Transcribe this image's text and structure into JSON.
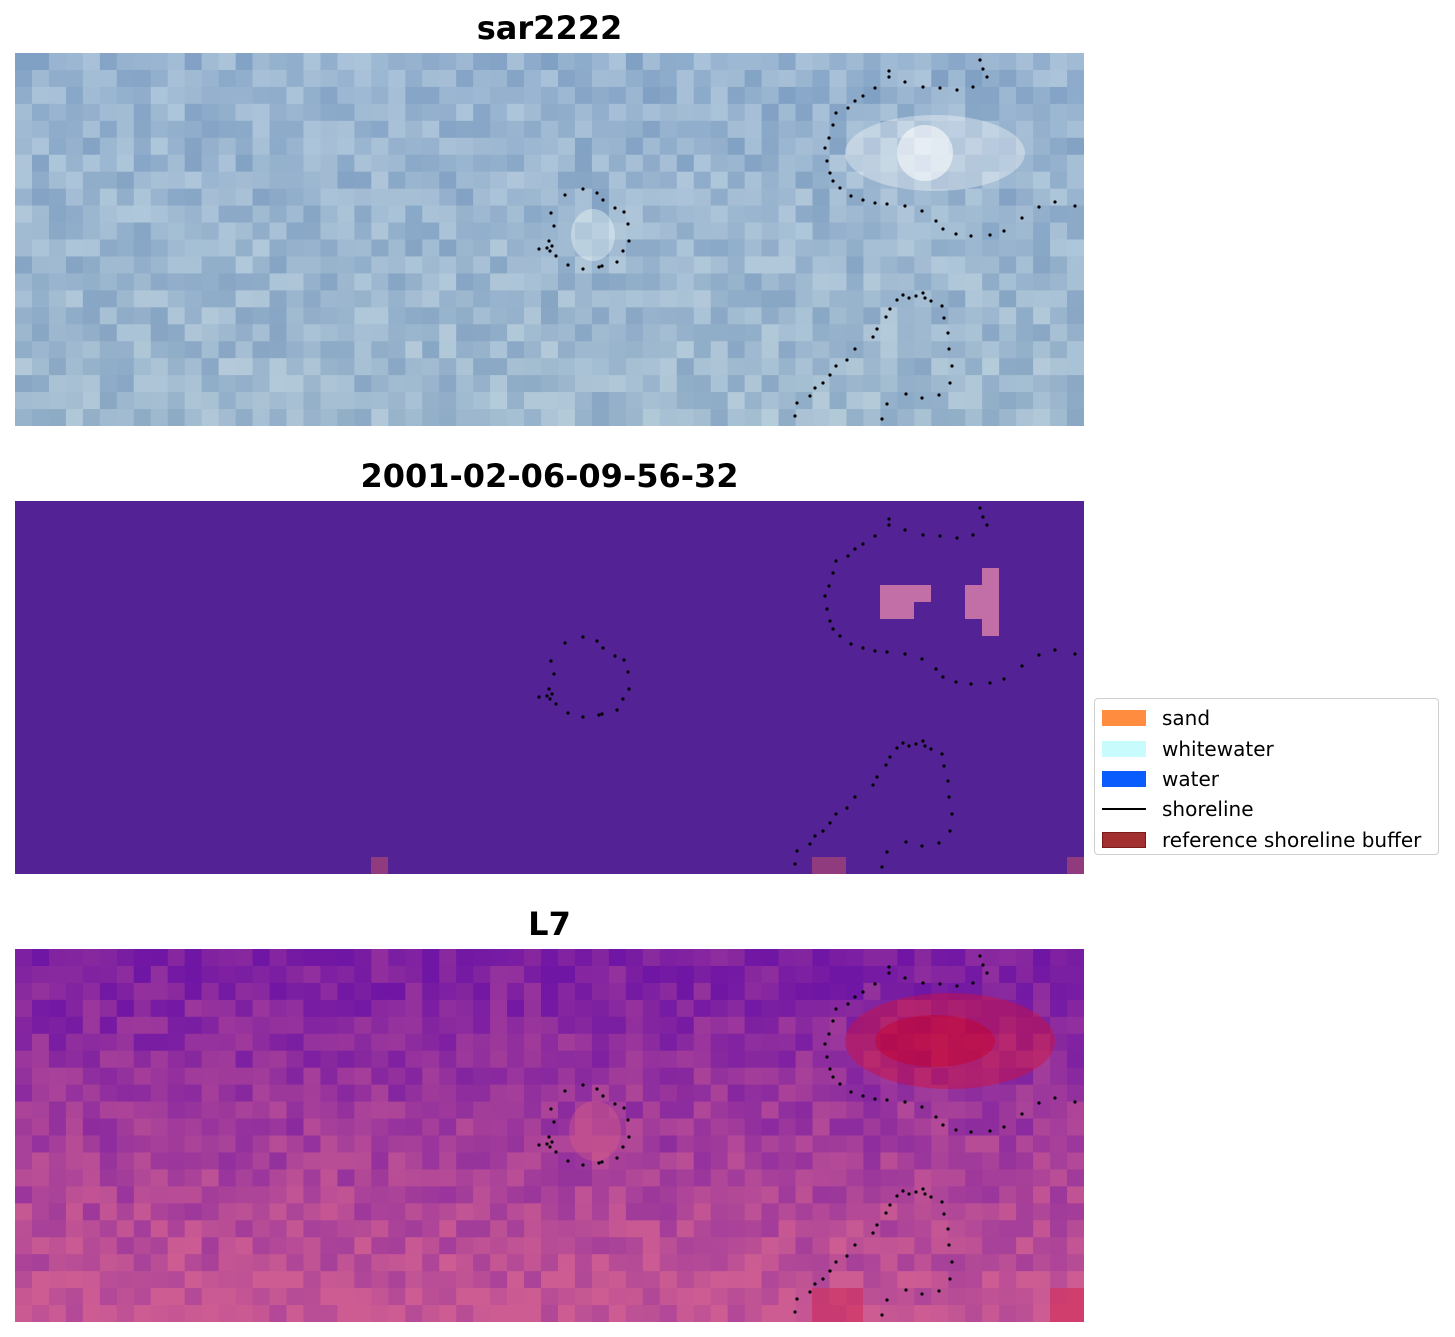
{
  "panels": {
    "top": {
      "title": "sar2222"
    },
    "middle": {
      "title": "2001-02-06-09-56-32"
    },
    "bottom": {
      "title": "L7"
    }
  },
  "legend": {
    "items": [
      {
        "label": "sand",
        "color": "#ff8c3f",
        "kind": "patch"
      },
      {
        "label": "whitewater",
        "color": "#c8fcfc",
        "kind": "patch"
      },
      {
        "label": "water",
        "color": "#0a5cfc",
        "kind": "patch"
      },
      {
        "label": "shoreline",
        "color": "#000000",
        "kind": "line"
      },
      {
        "label": "reference shoreline buffer",
        "color": "#a33031",
        "kind": "patch"
      }
    ]
  },
  "colors": {
    "classification_background": "#532295",
    "classification_highlight": "#c16fa6",
    "buffer_overlay": "#8f3b7d",
    "shoreline_points": "#000000"
  }
}
